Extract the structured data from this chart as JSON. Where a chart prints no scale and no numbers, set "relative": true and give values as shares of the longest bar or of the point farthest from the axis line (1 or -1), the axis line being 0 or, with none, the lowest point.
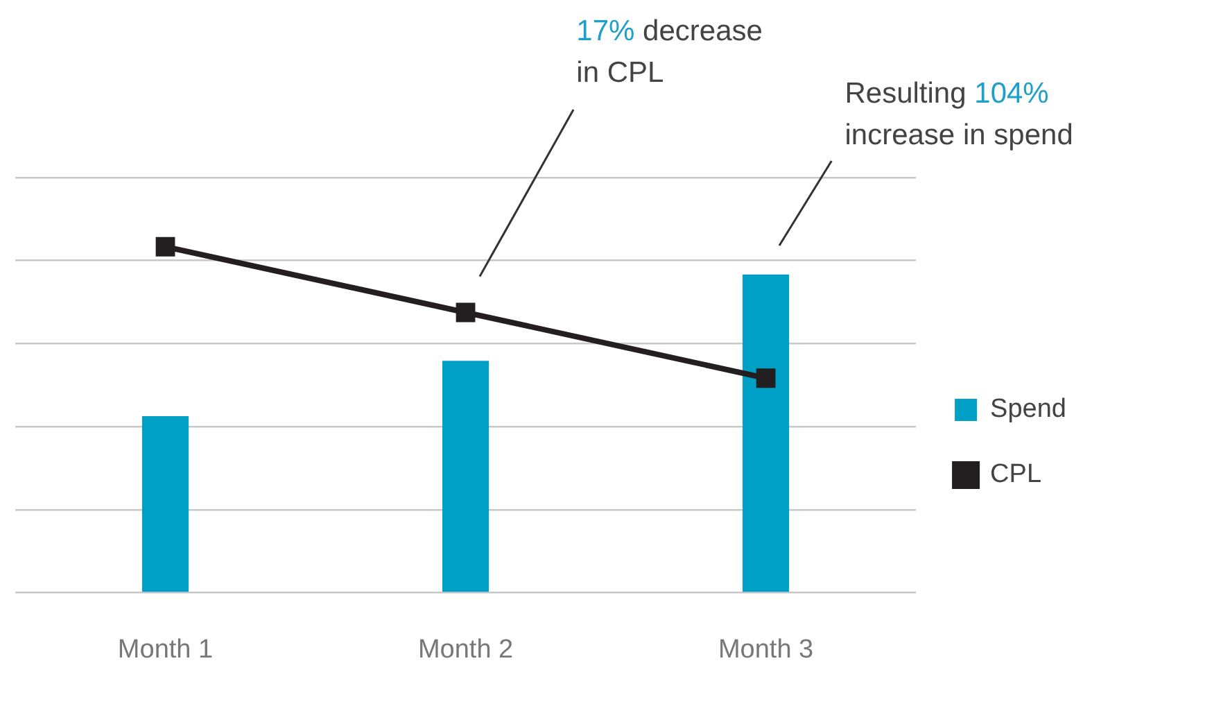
{
  "chart_data": {
    "type": "bar",
    "relative": true,
    "categories": [
      "Month 1",
      "Month 2",
      "Month 3"
    ],
    "series": [
      {
        "name": "Spend",
        "color": "#00a0c6",
        "values": [
          0.51,
          0.67,
          0.92
        ]
      },
      {
        "name": "CPL",
        "type": "line",
        "color": "#231f20",
        "values": [
          1,
          0.81,
          0.62
        ]
      }
    ],
    "annotations": [
      "17% decrease in CPL",
      "Resulting 104% increase in spend"
    ],
    "grid": "y",
    "legend": "right",
    "marker": "square",
    "line_style": "solid"
  }
}
